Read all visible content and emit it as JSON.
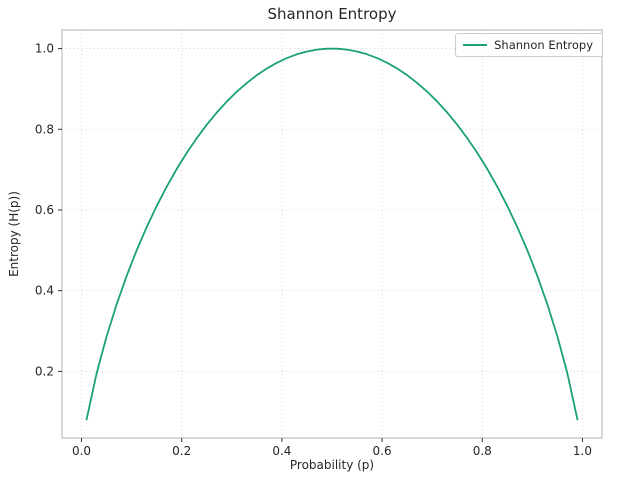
{
  "chart_data": {
    "type": "line",
    "title": "Shannon Entropy",
    "xlabel": "Probability (p)",
    "ylabel": "Entropy (H(p))",
    "legend": {
      "position": "upper right",
      "entries": [
        "Shannon Entropy"
      ]
    },
    "x_ticks": [
      0.0,
      0.2,
      0.4,
      0.6,
      0.8,
      1.0
    ],
    "y_ticks": [
      0.2,
      0.4,
      0.6,
      0.8,
      1.0
    ],
    "xlim": [
      -0.039,
      1.039
    ],
    "ylim": [
      0.035,
      1.046
    ],
    "grid": true,
    "colors": {
      "line": "#1aa179",
      "grid": "#cccccc",
      "spine": "#b0b0b0",
      "tick": "#333333",
      "text": "#262626",
      "background": "#ffffff"
    },
    "series": [
      {
        "name": "Shannon Entropy",
        "color": "#1aa179",
        "x": [
          0.01,
          0.03,
          0.05,
          0.07,
          0.09,
          0.11,
          0.13,
          0.15,
          0.17,
          0.19,
          0.21,
          0.23,
          0.25,
          0.27,
          0.29,
          0.31,
          0.33,
          0.35,
          0.37,
          0.39,
          0.41,
          0.43,
          0.45,
          0.47,
          0.49,
          0.51,
          0.53,
          0.55,
          0.57,
          0.59,
          0.61,
          0.63,
          0.65,
          0.67,
          0.69,
          0.71,
          0.73,
          0.75,
          0.77,
          0.79,
          0.81,
          0.83,
          0.85,
          0.87,
          0.89,
          0.91,
          0.93,
          0.95,
          0.97,
          0.99
        ],
        "y": [
          0.0808,
          0.1944,
          0.2864,
          0.3659,
          0.4365,
          0.4999,
          0.5574,
          0.6098,
          0.6577,
          0.7015,
          0.7415,
          0.778,
          0.8113,
          0.8415,
          0.8687,
          0.8932,
          0.9149,
          0.9341,
          0.9507,
          0.9648,
          0.9765,
          0.9858,
          0.9928,
          0.9974,
          0.9997,
          0.9997,
          0.9974,
          0.9928,
          0.9858,
          0.9765,
          0.9648,
          0.9507,
          0.9341,
          0.9149,
          0.8932,
          0.8687,
          0.8415,
          0.8113,
          0.778,
          0.7415,
          0.7015,
          0.6577,
          0.6098,
          0.5574,
          0.4999,
          0.4365,
          0.3659,
          0.2864,
          0.1944,
          0.0808
        ]
      }
    ]
  }
}
